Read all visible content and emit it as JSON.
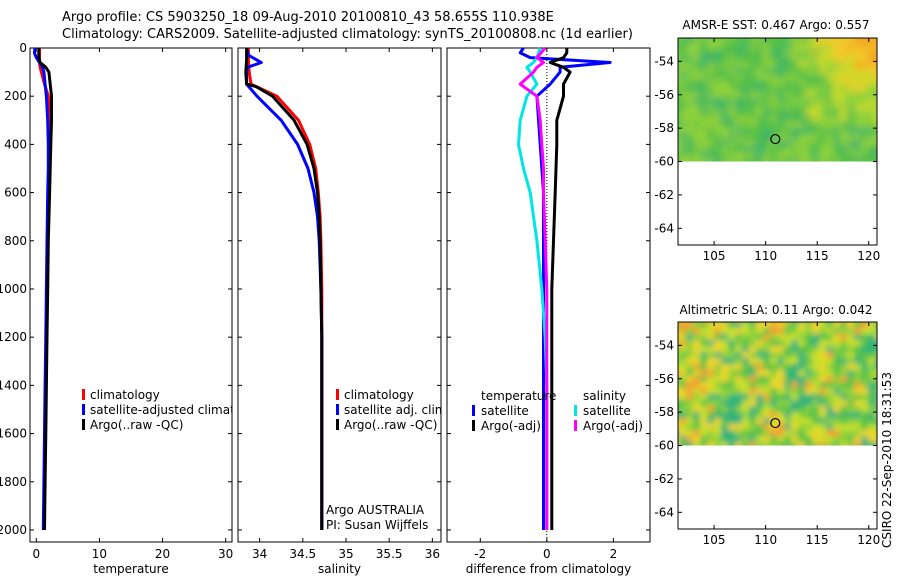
{
  "header": {
    "line1": "Argo profile: CS 5903250_18 09-Aug-2010 20100810_43 58.655S 110.938E",
    "line2": "Climatology: CARS2009. Satellite-adjusted climatology: synTS_20100808.nc (1d earlier)"
  },
  "credit": "CSIRO 22-Sep-2010 18:31:53",
  "chart_data": [
    {
      "type": "line",
      "id": "temperature",
      "xlabel": "temperature",
      "ylabel": "",
      "xlim": [
        -1,
        31
      ],
      "ylim": [
        2050,
        0
      ],
      "xticks": [
        0,
        10,
        20,
        30
      ],
      "yticks": [
        0,
        200,
        400,
        600,
        800,
        1000,
        1200,
        1400,
        1600,
        1800,
        2000
      ],
      "legend": [
        "climatology",
        "satellite-adjusted climatology",
        "Argo(..raw -QC)"
      ],
      "series": [
        {
          "name": "climatology",
          "color": "#ff0000",
          "depth": [
            0,
            20,
            40,
            60,
            80,
            100,
            150,
            200,
            300,
            400,
            500,
            600,
            800,
            1000,
            1200,
            1400,
            1600,
            1800,
            2000
          ],
          "values": [
            0.5,
            0.5,
            0.5,
            0.5,
            0.6,
            0.8,
            1.3,
            1.9,
            2.1,
            2.1,
            2.0,
            1.9,
            1.8,
            1.7,
            1.6,
            1.5,
            1.4,
            1.3,
            1.2
          ]
        },
        {
          "name": "satellite-adjusted climatology",
          "color": "#0000ff",
          "depth": [
            0,
            20,
            40,
            60,
            80,
            100,
            150,
            200,
            300,
            400,
            500,
            600,
            800,
            1000,
            1200,
            1400,
            1600,
            1800,
            2000
          ],
          "values": [
            -0.2,
            -0.3,
            0.0,
            0.5,
            1.0,
            1.2,
            1.4,
            1.6,
            1.8,
            1.9,
            1.9,
            1.8,
            1.7,
            1.6,
            1.5,
            1.4,
            1.3,
            1.2,
            1.1
          ]
        },
        {
          "name": "Argo(..raw -QC)",
          "color": "#000000",
          "depth": [
            0,
            20,
            40,
            60,
            80,
            100,
            150,
            200,
            300,
            400,
            500,
            600,
            800,
            1000,
            1200,
            1400,
            1600,
            1800,
            2000
          ],
          "values": [
            0.4,
            0.4,
            0.4,
            0.6,
            1.5,
            2.0,
            2.2,
            2.4,
            2.4,
            2.3,
            2.2,
            2.1,
            1.9,
            1.8,
            1.7,
            1.6,
            1.5,
            1.4,
            1.3
          ]
        }
      ]
    },
    {
      "type": "line",
      "id": "salinity",
      "xlabel": "salinity",
      "ylabel": "",
      "xlim": [
        33.75,
        36.1
      ],
      "ylim": [
        2050,
        0
      ],
      "xticks": [
        34,
        34.5,
        35,
        35.5,
        36
      ],
      "yticks": [
        0,
        200,
        400,
        600,
        800,
        1000,
        1200,
        1400,
        1600,
        1800,
        2000
      ],
      "legend": [
        "climatology",
        "satellite adj. clim.",
        "Argo(..raw -QC)"
      ],
      "annotations": [
        "Argo AUSTRALIA",
        "PI: Susan Wijffels"
      ],
      "series": [
        {
          "name": "climatology",
          "color": "#ff0000",
          "depth": [
            0,
            50,
            100,
            150,
            200,
            300,
            400,
            500,
            600,
            700,
            800,
            1000,
            1200,
            1400,
            1600,
            1800,
            2000
          ],
          "values": [
            33.87,
            33.87,
            33.88,
            33.9,
            34.2,
            34.45,
            34.58,
            34.65,
            34.68,
            34.7,
            34.71,
            34.72,
            34.72,
            34.72,
            34.72,
            34.72,
            34.72
          ]
        },
        {
          "name": "satellite adj. clim.",
          "color": "#0000ff",
          "depth": [
            0,
            30,
            60,
            80,
            100,
            150,
            200,
            300,
            400,
            500,
            600,
            700,
            800,
            1000,
            1200,
            1400,
            1600,
            1800,
            2000
          ],
          "values": [
            33.85,
            33.87,
            34.02,
            33.86,
            33.85,
            33.85,
            33.97,
            34.25,
            34.44,
            34.56,
            34.63,
            34.67,
            34.69,
            34.71,
            34.72,
            34.72,
            34.72,
            34.72,
            34.72
          ]
        },
        {
          "name": "Argo(..raw -QC)",
          "color": "#000000",
          "depth": [
            0,
            50,
            100,
            150,
            160,
            200,
            300,
            400,
            500,
            600,
            700,
            800,
            1000,
            1200,
            1400,
            1600,
            1800,
            2000
          ],
          "values": [
            33.85,
            33.85,
            33.84,
            33.85,
            33.96,
            34.15,
            34.4,
            34.55,
            34.63,
            34.67,
            34.69,
            34.7,
            34.71,
            34.72,
            34.72,
            34.72,
            34.72,
            34.72
          ]
        }
      ]
    },
    {
      "type": "line",
      "id": "difference",
      "xlabel": "difference from climatology",
      "ylabel": "",
      "xlim": [
        -3,
        3.1
      ],
      "ylim": [
        2050,
        0
      ],
      "xticks": [
        -2,
        0,
        2
      ],
      "yticks": [
        0,
        200,
        400,
        600,
        800,
        1000,
        1200,
        1400,
        1600,
        1800,
        2000
      ],
      "legend": {
        "temperature": [
          "satellite",
          "Argo(-adj)"
        ],
        "salinity": [
          "satellite",
          "Argo(-adj)"
        ]
      },
      "series": [
        {
          "name": "temperature satellite",
          "color": "#0000ff",
          "depth": [
            0,
            20,
            40,
            60,
            80,
            100,
            150,
            200,
            400,
            600,
            800,
            1000,
            1200,
            1400,
            1600,
            1800,
            2000
          ],
          "values": [
            -0.7,
            -0.8,
            -0.5,
            1.9,
            0.4,
            0.4,
            0.1,
            -0.3,
            -0.2,
            -0.1,
            -0.1,
            -0.1,
            -0.1,
            -0.1,
            -0.1,
            -0.1,
            -0.1
          ]
        },
        {
          "name": "temperature Argo(-adj)",
          "color": "#000000",
          "depth": [
            0,
            20,
            40,
            60,
            80,
            100,
            150,
            200,
            300,
            400,
            600,
            800,
            1000,
            1200,
            1400,
            1600,
            1800,
            2000
          ],
          "values": [
            0.6,
            0.6,
            0.5,
            0.1,
            0.5,
            0.7,
            0.5,
            0.5,
            0.3,
            0.3,
            0.25,
            0.2,
            0.15,
            0.15,
            0.15,
            0.15,
            0.15,
            0.15
          ]
        },
        {
          "name": "salinity satellite",
          "color": "#00e5e5",
          "depth": [
            0,
            40,
            60,
            80,
            100,
            150,
            200,
            300,
            400,
            500,
            600,
            800,
            1000,
            1200,
            1400,
            1600,
            1800,
            2000
          ],
          "values": [
            -0.2,
            -0.3,
            -0.4,
            -0.6,
            -0.5,
            -0.3,
            -0.6,
            -0.8,
            -0.85,
            -0.7,
            -0.5,
            -0.3,
            -0.15,
            -0.05,
            0.0,
            0.0,
            0.0,
            0.0
          ]
        },
        {
          "name": "salinity Argo(-adj)",
          "color": "#ff00ff",
          "depth": [
            0,
            40,
            60,
            80,
            100,
            150,
            200,
            300,
            400,
            500,
            600,
            800,
            1000,
            1200,
            1400,
            1600,
            1800,
            2000
          ],
          "values": [
            -0.05,
            -0.3,
            -0.1,
            -0.3,
            -0.4,
            -0.8,
            -0.3,
            -0.2,
            -0.15,
            -0.1,
            -0.1,
            -0.05,
            0.0,
            0.0,
            0.0,
            0.0,
            0.0,
            0.0
          ]
        }
      ]
    },
    {
      "type": "heatmap",
      "id": "sst",
      "title": "AMSR-E SST: 0.467 Argo: 0.557",
      "xlim": [
        101.5,
        120.8
      ],
      "ylim": [
        -65,
        -52.6
      ],
      "xticks": [
        105,
        110,
        115,
        120
      ],
      "yticks": [
        -54,
        -56,
        -58,
        -60,
        -62,
        -64
      ],
      "data_extent_lat_min": -60,
      "argo_location": {
        "lon": 110.938,
        "lat": -58.655
      }
    },
    {
      "type": "heatmap",
      "id": "sla",
      "title": "Altimetric SLA: 0.11 Argo: 0.042",
      "xlim": [
        101.5,
        120.8
      ],
      "ylim": [
        -65,
        -52.6
      ],
      "xticks": [
        105,
        110,
        115,
        120
      ],
      "yticks": [
        -54,
        -56,
        -58,
        -60,
        -62,
        -64
      ],
      "data_extent_lat_min": -60,
      "argo_location": {
        "lon": 110.938,
        "lat": -58.655
      }
    }
  ]
}
